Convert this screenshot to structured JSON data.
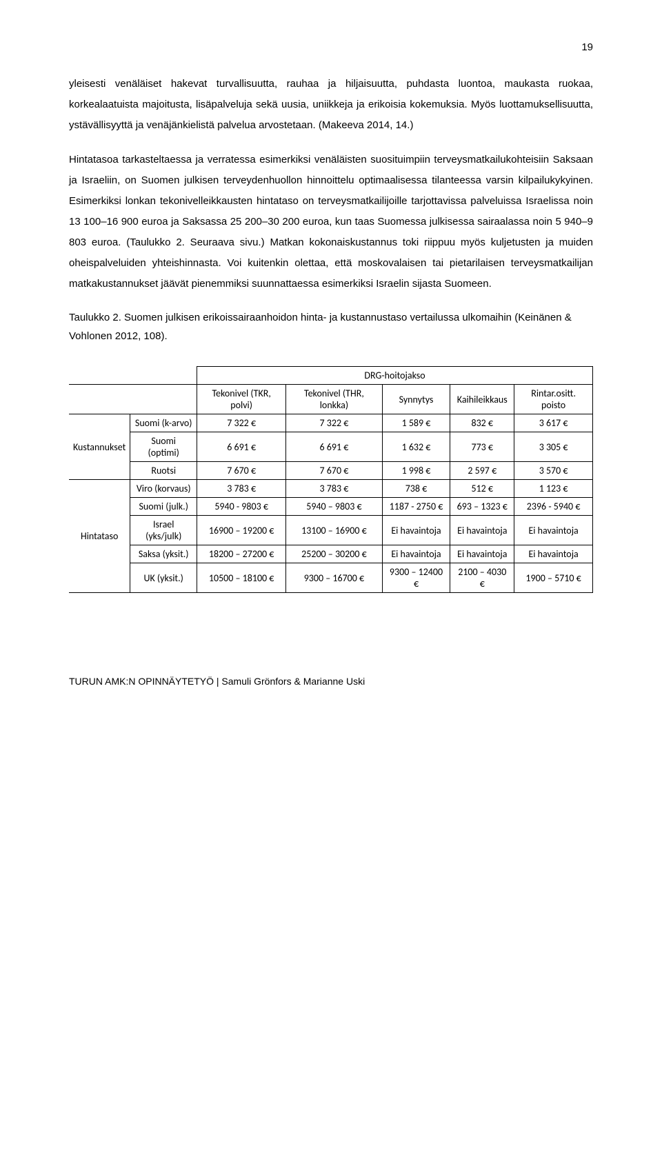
{
  "page_number": "19",
  "paragraphs": {
    "p1": "yleisesti venäläiset hakevat turvallisuutta, rauhaa ja hiljaisuutta, puhdasta luontoa, maukasta ruokaa, korkealaatuista majoitusta, lisäpalveluja sekä uusia, uniikkeja ja erikoisia kokemuksia. Myös luottamuksellisuutta, ystävällisyyttä ja venäjänkielistä palvelua arvostetaan. (Makeeva 2014, 14.)",
    "p2": "Hintatasoa tarkasteltaessa ja verratessa esimerkiksi venäläisten suosituimpiin terveysmatkailukohteisiin Saksaan ja Israeliin, on Suomen julkisen terveydenhuollon hinnoittelu optimaalisessa tilanteessa varsin kilpailukykyinen. Esimerkiksi lonkan tekonivelleikkausten hintataso on terveysmatkailijoille tarjottavissa palveluissa Israelissa noin 13 100–16 900 euroa ja Saksassa 25 200–30 200 euroa, kun taas Suomessa julkisessa sairaalassa noin 5 940–9 803 euroa. (Taulukko 2. Seuraava sivu.) Matkan kokonaiskustannus toki riippuu myös kuljetusten ja muiden oheispalveluiden yhteishinnasta. Voi kuitenkin olettaa, että moskovalaisen tai pietarilaisen terveysmatkailijan matkakustannukset jäävät pienemmiksi suunnattaessa esimerkiksi Israelin sijasta Suomeen.",
    "caption": "Taulukko 2. Suomen julkisen erikoissairaanhoidon hinta- ja kustannustaso vertailussa ulkomaihin (Keinänen & Vohlonen 2012, 108)."
  },
  "table": {
    "section_header": "DRG-hoitojakso",
    "columns": {
      "c1": "Tekonivel (TKR, polvi)",
      "c2": "Tekonivel (THR, lonkka)",
      "c3": "Synnytys",
      "c4": "Kaihileikkaus",
      "c5": "Rintar.ositt. poisto"
    },
    "group_labels": {
      "g1": "Kustannukset",
      "g2": "Hintataso"
    },
    "rows": [
      {
        "label": "Suomi (k-arvo)",
        "v": [
          "7 322 €",
          "7 322 €",
          "1 589 €",
          "832 €",
          "3 617 €"
        ]
      },
      {
        "label": "Suomi (optimi)",
        "v": [
          "6 691 €",
          "6 691 €",
          "1 632 €",
          "773 €",
          "3 305 €"
        ]
      },
      {
        "label": "Ruotsi",
        "v": [
          "7 670 €",
          "7 670 €",
          "1 998 €",
          "2 597 €",
          "3 570 €"
        ]
      },
      {
        "label": "Viro (korvaus)",
        "v": [
          "3 783 €",
          "3 783 €",
          "738 €",
          "512 €",
          "1 123 €"
        ]
      },
      {
        "label": "Suomi (julk.)",
        "v": [
          "5940 - 9803 €",
          "5940 – 9803 €",
          "1187 - 2750 €",
          "693 – 1323 €",
          "2396 - 5940 €"
        ]
      },
      {
        "label": "Israel (yks/julk)",
        "v": [
          "16900 – 19200 €",
          "13100 – 16900 €",
          "Ei havaintoja",
          "Ei havaintoja",
          "Ei havaintoja"
        ]
      },
      {
        "label": "Saksa (yksit.)",
        "v": [
          "18200 – 27200 €",
          "25200 – 30200 €",
          "Ei havaintoja",
          "Ei havaintoja",
          "Ei havaintoja"
        ]
      },
      {
        "label": "UK (yksit.)",
        "v": [
          "10500 – 18100 €",
          "9300 – 16700 €",
          "9300 – 12400 €",
          "2100 – 4030 €",
          "1900 – 5710 €"
        ]
      }
    ]
  },
  "footer": "TURUN AMK:N OPINNÄYTETYÖ | Samuli Grönfors & Marianne Uski"
}
